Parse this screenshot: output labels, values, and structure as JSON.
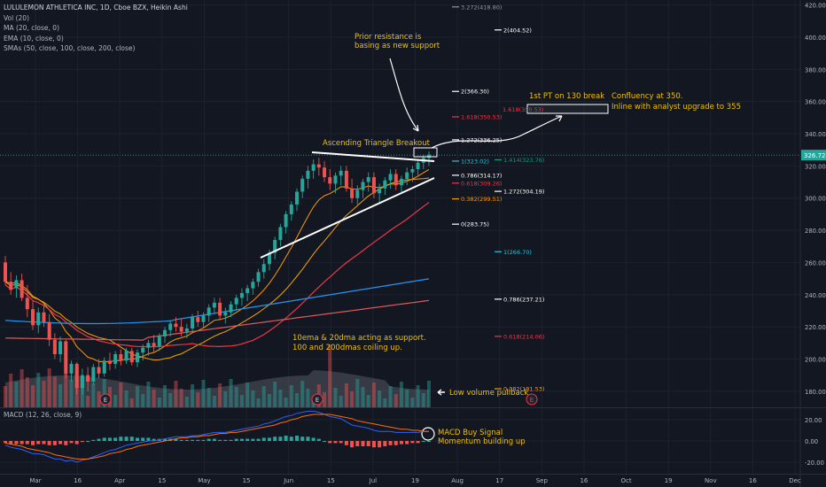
{
  "legend": {
    "title": "LULULEMON ATHLETICA INC, 1D, Cboe BZX, Heikin Ashi",
    "lines": [
      "Vol (20)",
      "MA (20, close, 0)",
      "EMA (10, close, 0)",
      "SMAs (50, close, 100, close, 200, close)"
    ],
    "macd": "MACD (12, 26, close, 9)"
  },
  "chart_data": {
    "type": "candlestick",
    "x_ticks": [
      "Mar",
      "16",
      "Apr",
      "15",
      "May",
      "15",
      "Jun",
      "15",
      "Jul",
      "19",
      "Aug",
      "17",
      "Sep",
      "16",
      "Oct",
      "19",
      "Nov",
      "16",
      "Dec"
    ],
    "y_ticks": [
      "420.00",
      "400.00",
      "380.00",
      "360.00",
      "340.00",
      "320.00",
      "300.00",
      "280.00",
      "260.00",
      "240.00",
      "220.00",
      "200.00",
      "180.00"
    ],
    "y_range": [
      170,
      422
    ],
    "last_price": "326.72",
    "macd_ticks": [
      "20.00",
      "0.00",
      "-20.00"
    ],
    "macd_range": [
      -30,
      30
    ],
    "candles": [
      [
        260,
        264,
        246,
        248
      ],
      [
        248,
        254,
        240,
        243
      ],
      [
        244,
        252,
        238,
        249
      ],
      [
        249,
        253,
        236,
        238
      ],
      [
        238,
        246,
        226,
        231
      ],
      [
        231,
        236,
        218,
        221
      ],
      [
        221,
        232,
        216,
        229
      ],
      [
        229,
        234,
        220,
        223
      ],
      [
        223,
        228,
        208,
        212
      ],
      [
        212,
        216,
        200,
        203
      ],
      [
        203,
        214,
        198,
        211
      ],
      [
        211,
        212,
        188,
        191
      ],
      [
        191,
        199,
        186,
        197
      ],
      [
        197,
        198,
        178,
        182
      ],
      [
        182,
        194,
        178,
        190
      ],
      [
        190,
        195,
        180,
        186
      ],
      [
        186,
        197,
        184,
        195
      ],
      [
        195,
        200,
        188,
        191
      ],
      [
        191,
        201,
        189,
        199
      ],
      [
        199,
        204,
        193,
        197
      ],
      [
        197,
        205,
        194,
        203
      ],
      [
        203,
        206,
        196,
        199
      ],
      [
        199,
        207,
        197,
        205
      ],
      [
        205,
        207,
        196,
        198
      ],
      [
        198,
        206,
        195,
        204
      ],
      [
        204,
        209,
        199,
        207
      ],
      [
        207,
        212,
        202,
        210
      ],
      [
        210,
        215,
        204,
        208
      ],
      [
        208,
        216,
        205,
        214
      ],
      [
        214,
        220,
        210,
        218
      ],
      [
        218,
        224,
        214,
        222
      ],
      [
        222,
        226,
        217,
        220
      ],
      [
        220,
        225,
        214,
        217
      ],
      [
        217,
        222,
        213,
        219
      ],
      [
        219,
        228,
        217,
        226
      ],
      [
        226,
        230,
        220,
        223
      ],
      [
        223,
        229,
        219,
        227
      ],
      [
        227,
        234,
        223,
        232
      ],
      [
        232,
        238,
        228,
        235
      ],
      [
        235,
        238,
        224,
        227
      ],
      [
        227,
        232,
        222,
        229
      ],
      [
        229,
        236,
        226,
        234
      ],
      [
        234,
        240,
        230,
        238
      ],
      [
        238,
        244,
        233,
        241
      ],
      [
        241,
        246,
        236,
        244
      ],
      [
        244,
        250,
        240,
        248
      ],
      [
        248,
        256,
        245,
        254
      ],
      [
        254,
        262,
        250,
        259
      ],
      [
        259,
        268,
        255,
        266
      ],
      [
        266,
        276,
        262,
        274
      ],
      [
        274,
        284,
        270,
        282
      ],
      [
        282,
        292,
        278,
        290
      ],
      [
        290,
        298,
        286,
        296
      ],
      [
        296,
        306,
        292,
        304
      ],
      [
        304,
        314,
        300,
        312
      ],
      [
        312,
        320,
        306,
        317
      ],
      [
        317,
        324,
        312,
        321
      ],
      [
        321,
        325,
        314,
        319
      ],
      [
        319,
        323,
        310,
        313
      ],
      [
        313,
        318,
        305,
        309
      ],
      [
        309,
        316,
        303,
        314
      ],
      [
        314,
        320,
        308,
        317
      ],
      [
        317,
        320,
        304,
        306
      ],
      [
        306,
        312,
        297,
        300
      ],
      [
        300,
        308,
        296,
        305
      ],
      [
        305,
        312,
        300,
        310
      ],
      [
        310,
        316,
        304,
        313
      ],
      [
        313,
        316,
        300,
        303
      ],
      [
        303,
        309,
        297,
        306
      ],
      [
        306,
        313,
        302,
        311
      ],
      [
        311,
        318,
        306,
        315
      ],
      [
        315,
        318,
        305,
        308
      ],
      [
        308,
        314,
        303,
        312
      ],
      [
        312,
        319,
        308,
        316
      ],
      [
        316,
        320,
        310,
        318
      ],
      [
        318,
        324,
        314,
        322
      ],
      [
        322,
        327,
        318,
        325
      ],
      [
        325,
        329,
        320,
        327
      ]
    ],
    "macd": [
      -4,
      -6,
      -7,
      -8,
      -10,
      -12,
      -12,
      -13,
      -15,
      -17,
      -17,
      -19,
      -18,
      -20,
      -18,
      -17,
      -15,
      -13,
      -11,
      -9,
      -8,
      -6,
      -4,
      -3,
      -2,
      -1,
      0,
      0,
      1,
      2,
      3,
      4,
      4,
      4,
      5,
      5,
      6,
      7,
      8,
      8,
      8,
      9,
      10,
      11,
      12,
      13,
      14,
      16,
      17,
      19,
      21,
      23,
      24,
      26,
      27,
      28,
      28,
      27,
      25,
      23,
      22,
      21,
      18,
      15,
      14,
      13,
      12,
      10,
      9,
      9,
      9,
      8,
      8,
      8,
      8,
      8,
      9,
      9
    ],
    "signal": [
      -2,
      -3,
      -4,
      -5,
      -7,
      -8,
      -9,
      -10,
      -11,
      -13,
      -14,
      -15,
      -16,
      -17,
      -17,
      -17,
      -16,
      -15,
      -14,
      -12,
      -11,
      -10,
      -8,
      -7,
      -5,
      -4,
      -3,
      -2,
      -1,
      0,
      1,
      2,
      3,
      3,
      4,
      4,
      5,
      5,
      6,
      7,
      7,
      8,
      8,
      9,
      10,
      11,
      12,
      13,
      14,
      15,
      17,
      18,
      20,
      21,
      23,
      24,
      25,
      25,
      25,
      25,
      24,
      23,
      22,
      21,
      19,
      18,
      17,
      16,
      15,
      14,
      13,
      12,
      11,
      11,
      10,
      10,
      9,
      9
    ],
    "fib_levels": [
      {
        "label": "3.272(418.80)",
        "value": 418.8,
        "color": "#9598a1",
        "x": 510
      },
      {
        "label": "2(404.52)",
        "value": 404.5,
        "color": "#ffffff",
        "x": 558
      },
      {
        "label": "2(366.30)",
        "value": 366.3,
        "color": "#ffffff",
        "x": 510
      },
      {
        "label": "1.618(350.53)",
        "value": 350.5,
        "color": "#f23645",
        "x": 510
      },
      {
        "label": "1.272(336.25)",
        "value": 336.2,
        "color": "#ffffff",
        "x": 510
      },
      {
        "label": "1.414(323.76)",
        "value": 323.8,
        "color": "#089981",
        "x": 558
      },
      {
        "label": "1(323.02)",
        "value": 323.0,
        "color": "#26c6da",
        "x": 510
      },
      {
        "label": "0.786(314.17)",
        "value": 314.2,
        "color": "#ffffff",
        "x": 510
      },
      {
        "label": "0.618(309.26)",
        "value": 309.3,
        "color": "#f23645",
        "x": 510
      },
      {
        "label": "0.382(299.51)",
        "value": 299.5,
        "color": "#ff9800",
        "x": 510
      },
      {
        "label": "1.272(304.19)",
        "value": 304.2,
        "color": "#ffffff",
        "x": 558
      },
      {
        "label": "0(283.75)",
        "value": 283.8,
        "color": "#ffffff",
        "x": 510
      },
      {
        "label": "1(266.70)",
        "value": 266.7,
        "color": "#26c6da",
        "x": 558
      },
      {
        "label": "0.786(237.21)",
        "value": 237.2,
        "color": "#ffffff",
        "x": 558
      },
      {
        "label": "0.618(214.06)",
        "value": 214.1,
        "color": "#f23645",
        "x": 558
      },
      {
        "label": "0.382(181.53)",
        "value": 181.5,
        "color": "#ff9800",
        "x": 558
      }
    ]
  },
  "annotations": {
    "prior_resistance": [
      "Prior resistance is",
      "basing as new support"
    ],
    "pt_label": "1st PT on 130 break",
    "confluence": [
      "Confluency at 350.",
      "Inline with analyst upgrade to 355"
    ],
    "triangle": "Ascending Triangle Breakout",
    "ema_support": [
      "10ema & 20dma acting as support.",
      "100 and 200dmas coiling up."
    ],
    "low_volume": "Low volume pullback",
    "macd_signal": [
      "MACD Buy Signal",
      "Momentum building up"
    ],
    "pt_box_label": "1.618(350.53)",
    "earnings": [
      "E",
      "E",
      "E"
    ]
  },
  "colors": {
    "bg": "#131722",
    "up": "#26a69a",
    "down": "#ef5350",
    "ema10": "#ff9800",
    "ma20": "#ff9800",
    "sma50": "#f23645",
    "sma100": "#2196f3",
    "sma200": "#f23645",
    "annotation": "#f0c000"
  }
}
